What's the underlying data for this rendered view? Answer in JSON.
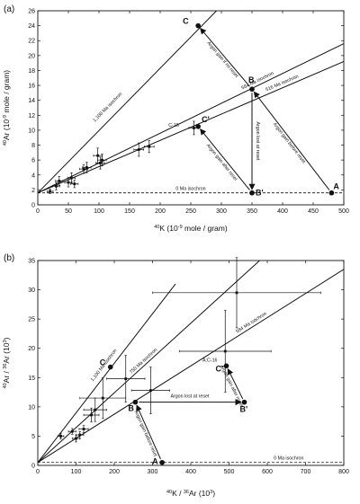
{
  "chart_data": [
    {
      "panel_label": "(a)",
      "type": "scatter",
      "xlabel_parts": {
        "sup": "40",
        "main": "K  (10",
        "exp": "-9",
        "tail": " mole / gram)"
      },
      "ylabel_parts": {
        "sup": "40",
        "main": "Ar  (10",
        "exp": "-9",
        "tail": " mole / gram)"
      },
      "xlim": [
        0,
        500
      ],
      "ylim": [
        0,
        26
      ],
      "x_ticks": [
        0,
        50,
        100,
        150,
        200,
        250,
        300,
        350,
        400,
        450,
        500
      ],
      "y_ticks": [
        0,
        2,
        4,
        6,
        8,
        10,
        12,
        14,
        16,
        18,
        20,
        22,
        24,
        26
      ],
      "isochrons": [
        {
          "label": "1,100 Ma isochron",
          "x0": 0,
          "y0": 1.6,
          "x1": 310,
          "y1": 27.5,
          "dashed": false
        },
        {
          "label": "584 Ma isochron",
          "x0": 0,
          "y0": 1.6,
          "x1": 500,
          "y1": 21.6,
          "dashed": false
        },
        {
          "label": "516 Ma isochron",
          "x0": 0,
          "y0": 1.6,
          "x1": 500,
          "y1": 19.2,
          "dashed": false
        },
        {
          "label": "0 Ma isochron",
          "x0": 0,
          "y0": 1.6,
          "x1": 500,
          "y1": 1.6,
          "dashed": true
        }
      ],
      "key_points": [
        {
          "label": "A",
          "x": 480,
          "y": 1.6
        },
        {
          "label": "B",
          "x": 350,
          "y": 15.5
        },
        {
          "label": "B'",
          "x": 350,
          "y": 1.6
        },
        {
          "label": "C",
          "x": 262,
          "y": 24
        },
        {
          "label": "C'",
          "x": 262,
          "y": 10.5
        }
      ],
      "arrows": [
        {
          "label": "Argon gain if no reset",
          "from": [
            350,
            15.5
          ],
          "to": [
            262,
            24
          ]
        },
        {
          "label": "Argon gain before reset",
          "from": [
            480,
            1.6
          ],
          "to": [
            350,
            15.5
          ]
        },
        {
          "label": "Argon lost at reset",
          "from": [
            350,
            15.5
          ],
          "to": [
            350,
            1.6
          ]
        },
        {
          "label": "Argon gain after reset",
          "from": [
            350,
            1.6
          ],
          "to": [
            262,
            10.5
          ]
        }
      ],
      "samples": [
        {
          "x": 20,
          "y": 1.8,
          "xerr": 5,
          "yerr": 0.3
        },
        {
          "x": 30,
          "y": 2.5,
          "xerr": 6,
          "yerr": 0.5
        },
        {
          "x": 35,
          "y": 3.2,
          "xerr": 6,
          "yerr": 0.6
        },
        {
          "x": 50,
          "y": 3.0,
          "xerr": 6,
          "yerr": 0.6
        },
        {
          "x": 55,
          "y": 3.6,
          "xerr": 6,
          "yerr": 0.7
        },
        {
          "x": 60,
          "y": 2.8,
          "xerr": 6,
          "yerr": 0.5
        },
        {
          "x": 75,
          "y": 4.8,
          "xerr": 7,
          "yerr": 0.6
        },
        {
          "x": 80,
          "y": 5.0,
          "xerr": 7,
          "yerr": 0.7
        },
        {
          "x": 98,
          "y": 6.6,
          "xerr": 7,
          "yerr": 1.0
        },
        {
          "x": 102,
          "y": 5.6,
          "xerr": 7,
          "yerr": 0.8
        },
        {
          "x": 105,
          "y": 6.0,
          "xerr": 7,
          "yerr": 0.8
        },
        {
          "x": 165,
          "y": 7.4,
          "xerr": 8,
          "yerr": 0.9
        },
        {
          "x": 182,
          "y": 7.8,
          "xerr": 8,
          "yerr": 0.8
        },
        {
          "x": 255,
          "y": 10.3,
          "xerr": 8,
          "yerr": 0.9
        }
      ],
      "sample_label": {
        "text": "C-16",
        "x": 222,
        "y": 10.5
      }
    },
    {
      "panel_label": "(b)",
      "type": "scatter",
      "xlabel_parts": {
        "sup": "40",
        "main": "K / ",
        "sup2": "36",
        "main2": "Ar  (10",
        "exp": "3",
        "tail": ")"
      },
      "ylabel_parts": {
        "sup": "40",
        "main": "Ar / ",
        "sup2": "36",
        "main2": "Ar  (10",
        "exp": "3",
        "tail": ")"
      },
      "xlim": [
        0,
        800
      ],
      "ylim": [
        0,
        35
      ],
      "x_ticks": [
        0,
        100,
        200,
        300,
        400,
        500,
        600,
        700,
        800
      ],
      "y_ticks": [
        0,
        5,
        10,
        15,
        20,
        25,
        30,
        35
      ],
      "isochrons": [
        {
          "label": "1,100 Ma isochron",
          "x0": 0,
          "y0": 0.5,
          "x1": 360,
          "y1": 31,
          "dashed": false
        },
        {
          "label": "750 Ma isochron",
          "x0": 0,
          "y0": 0.5,
          "x1": 580,
          "y1": 35,
          "dashed": false
        },
        {
          "label": "584 Ma isochron",
          "x0": 0,
          "y0": 0.5,
          "x1": 800,
          "y1": 33.5,
          "dashed": false
        },
        {
          "label": "0 Ma isochron",
          "x0": 0,
          "y0": 0.5,
          "x1": 800,
          "y1": 0.5,
          "dashed": true
        }
      ],
      "key_points": [
        {
          "label": "A",
          "x": 325,
          "y": 0.5
        },
        {
          "label": "B",
          "x": 255,
          "y": 10.8
        },
        {
          "label": "B'",
          "x": 540,
          "y": 10.8
        },
        {
          "label": "C",
          "x": 190,
          "y": 16.8
        },
        {
          "label": "C'",
          "x": 493,
          "y": 17.0
        }
      ],
      "arrows": [
        {
          "label": "Argon gain before reset",
          "from": [
            325,
            0.5
          ],
          "to": [
            255,
            10.8
          ]
        },
        {
          "label": "Argon lost at reset",
          "from": [
            255,
            10.8
          ],
          "to": [
            540,
            10.8
          ]
        },
        {
          "label": "Argon gain after reset",
          "from": [
            540,
            10.8
          ],
          "to": [
            493,
            17.0
          ]
        }
      ],
      "samples": [
        {
          "x": 60,
          "y": 5.0,
          "xerr": 8,
          "yerr": 0.5
        },
        {
          "x": 90,
          "y": 5.8,
          "xerr": 10,
          "yerr": 0.5
        },
        {
          "x": 100,
          "y": 4.6,
          "xerr": 10,
          "yerr": 0.6
        },
        {
          "x": 110,
          "y": 5.2,
          "xerr": 10,
          "yerr": 0.6
        },
        {
          "x": 120,
          "y": 6.2,
          "xerr": 12,
          "yerr": 0.6
        },
        {
          "x": 140,
          "y": 8.6,
          "xerr": 20,
          "yerr": 1.2
        },
        {
          "x": 150,
          "y": 9.5,
          "xerr": 30,
          "yerr": 2.0
        },
        {
          "x": 170,
          "y": 11.5,
          "xerr": 60,
          "yerr": 3.5
        },
        {
          "x": 230,
          "y": 14.8,
          "xerr": 50,
          "yerr": 4.0
        },
        {
          "x": 295,
          "y": 12.8,
          "xerr": 50,
          "yerr": 4.0
        },
        {
          "x": 490,
          "y": 19.5,
          "xerr": 120,
          "yerr": 7.0
        },
        {
          "x": 520,
          "y": 29.5,
          "xerr": 220,
          "yerr": 6.0
        }
      ],
      "sample_label": {
        "text": "A:C-16",
        "x": 450,
        "y": 17.7
      }
    }
  ]
}
